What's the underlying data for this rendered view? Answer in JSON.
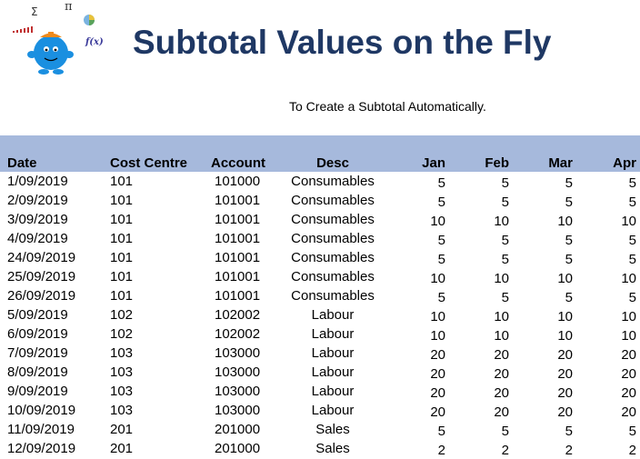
{
  "header": {
    "title": "Subtotal Values on the Fly",
    "subtitle": "To Create a Subtotal Automatically."
  },
  "logo": {
    "symbols": [
      "Σ",
      "π",
      "f(x)"
    ]
  },
  "colors": {
    "title": "#1f3864",
    "header_band": "#a6b9dc",
    "logo_body": "#1a8fe0",
    "logo_hat": "#f08a1c"
  },
  "table": {
    "columns": [
      "Date",
      "Cost Centre",
      "Account",
      "Desc",
      "Jan",
      "Feb",
      "Mar",
      "Apr"
    ],
    "rows": [
      [
        "1/09/2019",
        "101",
        "101000",
        "Consumables",
        "5",
        "5",
        "5",
        "5"
      ],
      [
        "2/09/2019",
        "101",
        "101001",
        "Consumables",
        "5",
        "5",
        "5",
        "5"
      ],
      [
        "3/09/2019",
        "101",
        "101001",
        "Consumables",
        "10",
        "10",
        "10",
        "10"
      ],
      [
        "4/09/2019",
        "101",
        "101001",
        "Consumables",
        "5",
        "5",
        "5",
        "5"
      ],
      [
        "24/09/2019",
        "101",
        "101001",
        "Consumables",
        "5",
        "5",
        "5",
        "5"
      ],
      [
        "25/09/2019",
        "101",
        "101001",
        "Consumables",
        "10",
        "10",
        "10",
        "10"
      ],
      [
        "26/09/2019",
        "101",
        "101001",
        "Consumables",
        "5",
        "5",
        "5",
        "5"
      ],
      [
        "5/09/2019",
        "102",
        "102002",
        "Labour",
        "10",
        "10",
        "10",
        "10"
      ],
      [
        "6/09/2019",
        "102",
        "102002",
        "Labour",
        "10",
        "10",
        "10",
        "10"
      ],
      [
        "7/09/2019",
        "103",
        "103000",
        "Labour",
        "20",
        "20",
        "20",
        "20"
      ],
      [
        "8/09/2019",
        "103",
        "103000",
        "Labour",
        "20",
        "20",
        "20",
        "20"
      ],
      [
        "9/09/2019",
        "103",
        "103000",
        "Labour",
        "20",
        "20",
        "20",
        "20"
      ],
      [
        "10/09/2019",
        "103",
        "103000",
        "Labour",
        "20",
        "20",
        "20",
        "20"
      ],
      [
        "11/09/2019",
        "201",
        "201000",
        "Sales",
        "5",
        "5",
        "5",
        "5"
      ],
      [
        "12/09/2019",
        "201",
        "201000",
        "Sales",
        "2",
        "2",
        "2",
        "2"
      ]
    ]
  }
}
